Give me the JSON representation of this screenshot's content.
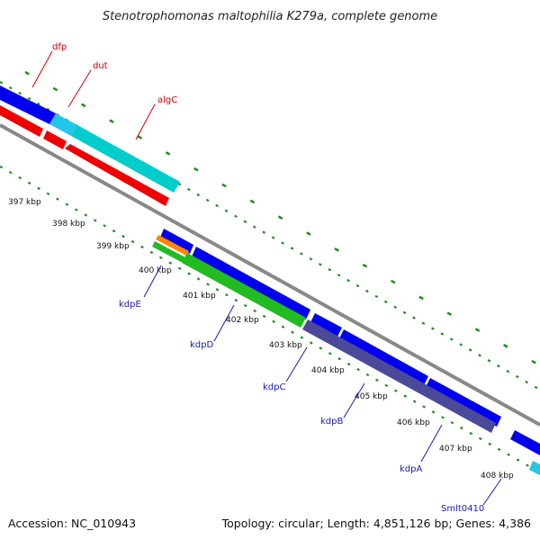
{
  "title": "Stenotrophomonas maltophilia K279a, complete genome",
  "footer": {
    "accession": "Accession: NC_010943",
    "summary": "Topology: circular; Length: 4,851,126 bp; Genes: 4,386"
  },
  "colors": {
    "forward_cds": "#0000ee",
    "forward_rna": "#00cccc",
    "reverse_cds": "#ee0000",
    "gc_green": "#22bb22",
    "orange": "#ff8800",
    "slate": "#4a4a99",
    "backbone": "#888888",
    "ticks": "#228B22"
  },
  "scale_labels": [
    "397 kbp",
    "398 kbp",
    "399 kbp",
    "400 kbp",
    "401 kbp",
    "402 kbp",
    "403 kbp",
    "404 kbp",
    "405 kbp",
    "406 kbp",
    "407 kbp",
    "408 kbp"
  ],
  "gene_labels_top": [
    "dfp",
    "dut",
    "algC"
  ],
  "gene_labels_bottom": [
    "kdpE",
    "kdpD",
    "kdpC",
    "kdpB",
    "kdpA",
    "Smlt0410"
  ]
}
